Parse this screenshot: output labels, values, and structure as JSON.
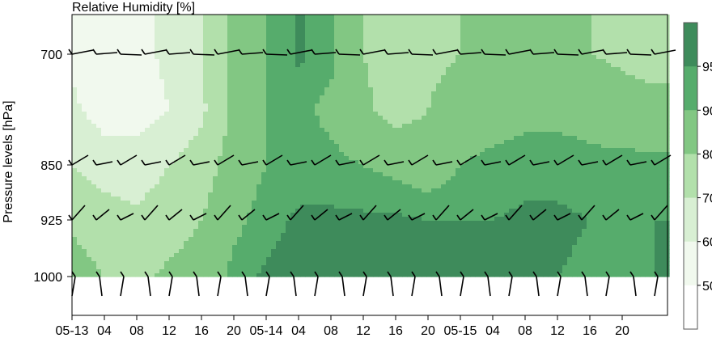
{
  "chart_data": {
    "type": "heatmap",
    "title": "Relative Humidity [%]",
    "ylabel": "Pressure levels [hPa]",
    "xlabel": "",
    "x_ticks": [
      "05-13",
      "04",
      "08",
      "12",
      "16",
      "20",
      "05-14",
      "04",
      "08",
      "12",
      "16",
      "20",
      "05-15",
      "04",
      "08",
      "12",
      "16",
      "20"
    ],
    "y_ticks": [
      "700",
      "850",
      "925",
      "1000"
    ],
    "colorbar": {
      "ticks": [
        "50",
        "60",
        "70",
        "80",
        "90",
        "95"
      ],
      "colors": [
        "#ffffff",
        "#f1f9ee",
        "#d8efd3",
        "#b2e0ab",
        "#82c783",
        "#56ac6c",
        "#3e8b5b"
      ]
    },
    "rh_grid": {
      "x_hours": [
        0,
        4,
        8,
        12,
        16,
        20,
        24,
        28,
        32,
        36,
        40,
        44,
        48,
        52,
        56,
        60,
        64,
        68,
        72
      ],
      "levels_hpa": [
        700,
        775,
        850,
        925,
        1000
      ],
      "values": [
        [
          58,
          55,
          57,
          62,
          70,
          82,
          90,
          96,
          92,
          80,
          75,
          78,
          80,
          82,
          86,
          85,
          80,
          78,
          75
        ],
        [
          62,
          55,
          55,
          60,
          68,
          82,
          90,
          92,
          88,
          82,
          76,
          80,
          84,
          86,
          88,
          88,
          87,
          85,
          84
        ],
        [
          70,
          66,
          65,
          70,
          75,
          85,
          90,
          92,
          92,
          90,
          88,
          85,
          90,
          92,
          93,
          93,
          92,
          92,
          92
        ],
        [
          78,
          74,
          72,
          75,
          80,
          88,
          93,
          96,
          96,
          96,
          96,
          95,
          95,
          95,
          96,
          96,
          95,
          94,
          95
        ],
        [
          85,
          80,
          78,
          82,
          85,
          92,
          96,
          97,
          97,
          97,
          96,
          95,
          95,
          95,
          96,
          95,
          94,
          93,
          95
        ]
      ]
    },
    "wind_barb_levels_hpa": [
      700,
      850,
      925,
      1000
    ]
  }
}
